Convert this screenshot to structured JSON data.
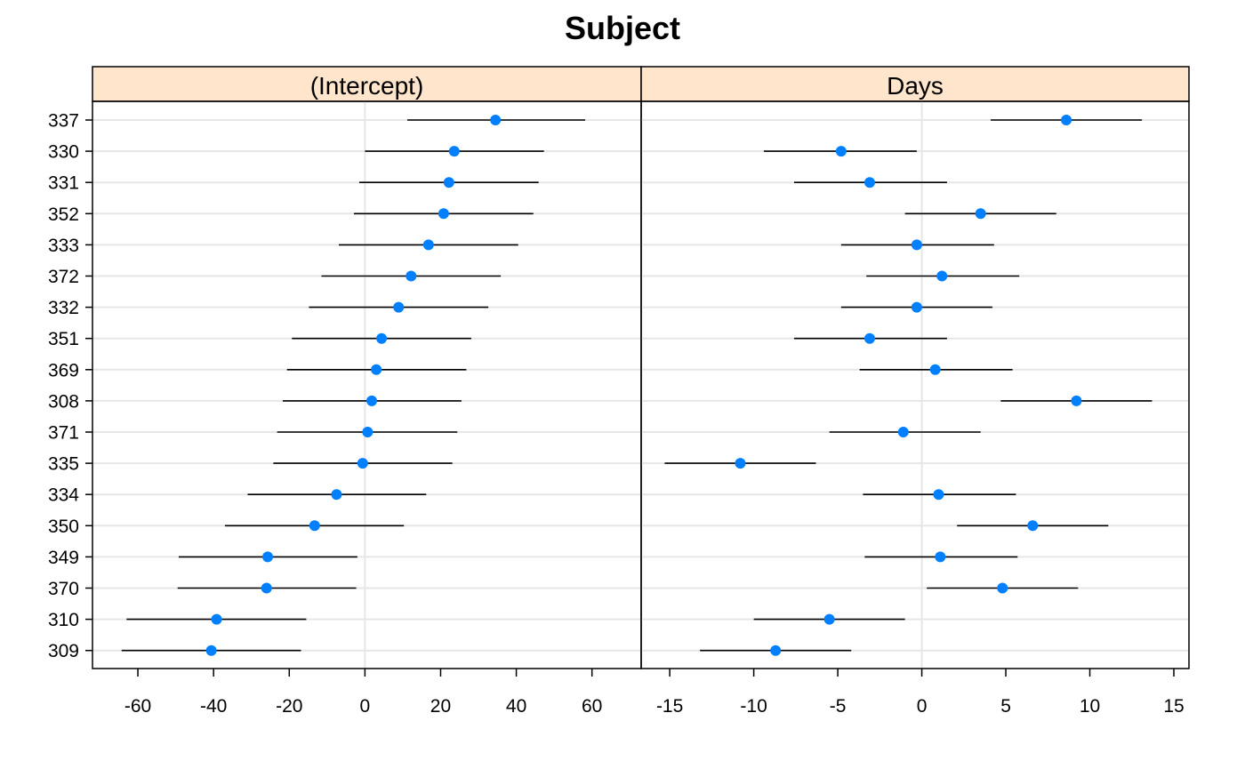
{
  "chart_data": {
    "type": "dotplot-intervals",
    "title": "Subject",
    "categories": [
      "337",
      "330",
      "331",
      "352",
      "333",
      "372",
      "332",
      "351",
      "369",
      "308",
      "371",
      "335",
      "334",
      "350",
      "349",
      "370",
      "310",
      "309"
    ],
    "grid": true,
    "panels": [
      {
        "name": "(Intercept)",
        "xlim": [
          -72,
          73
        ],
        "ticks": [
          -60,
          -40,
          -20,
          0,
          20,
          40,
          60
        ],
        "tick_labels": [
          "-60",
          "-40",
          "-20",
          "0",
          "20",
          "40",
          "60"
        ],
        "values": [
          34.5,
          23.6,
          22.2,
          20.8,
          16.8,
          12.2,
          8.9,
          4.4,
          3.0,
          1.8,
          0.7,
          -0.6,
          -7.5,
          -13.3,
          -25.7,
          -26.0,
          -39.2,
          -40.6
        ],
        "lower": [
          11.2,
          0.0,
          -1.5,
          -2.9,
          -6.9,
          -11.5,
          -14.8,
          -19.3,
          -20.6,
          -21.7,
          -23.2,
          -24.2,
          -31.0,
          -37.0,
          -49.2,
          -49.5,
          -63.0,
          -64.3
        ],
        "upper": [
          58.2,
          47.3,
          45.9,
          44.5,
          40.5,
          35.9,
          32.6,
          28.1,
          26.8,
          25.5,
          24.4,
          23.1,
          16.2,
          10.3,
          -2.0,
          -2.3,
          -15.5,
          -16.9
        ]
      },
      {
        "name": "Days",
        "xlim": [
          -16.7,
          15.9
        ],
        "ticks": [
          -15,
          -10,
          -5,
          0,
          5,
          10,
          15
        ],
        "tick_labels": [
          "-15",
          "-10",
          "-5",
          "0",
          "5",
          "10",
          "15"
        ],
        "values": [
          8.6,
          -4.8,
          -3.1,
          3.5,
          -0.3,
          1.2,
          -0.3,
          -3.1,
          0.8,
          9.2,
          -1.1,
          -10.8,
          1.0,
          6.6,
          1.1,
          4.8,
          -5.5,
          -8.7
        ],
        "lower": [
          4.1,
          -9.4,
          -7.6,
          -1.0,
          -4.8,
          -3.3,
          -4.8,
          -7.6,
          -3.7,
          4.7,
          -5.5,
          -15.3,
          -3.5,
          2.1,
          -3.4,
          0.3,
          -10.0,
          -13.2
        ],
        "upper": [
          13.1,
          -0.3,
          1.5,
          8.0,
          4.3,
          5.8,
          4.2,
          1.5,
          5.4,
          13.7,
          3.5,
          -6.3,
          5.6,
          11.1,
          5.7,
          9.3,
          -1.0,
          -4.2
        ]
      }
    ],
    "colors": {
      "point": "#0080ff",
      "interval": "#000000",
      "strip_bg": "#ffe5cc",
      "grid": "#e6e6e6",
      "zero_line": "#e6e6e6"
    }
  }
}
